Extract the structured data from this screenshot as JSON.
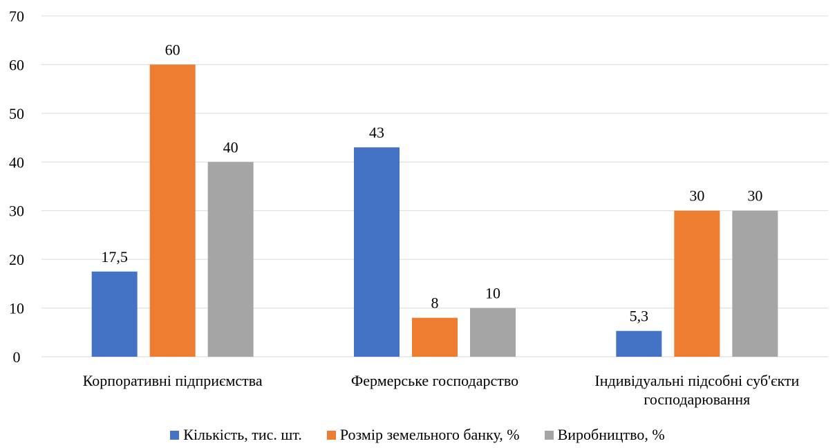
{
  "chart_data": {
    "type": "bar",
    "categories": [
      [
        "Корпоративні підприємства"
      ],
      [
        "Фермерське господарство"
      ],
      [
        "Індивідуальні підсобні суб'єкти",
        "господарювання"
      ]
    ],
    "series": [
      {
        "name": "Кількість, тис. шт.",
        "values": [
          17.5,
          43,
          5.3
        ],
        "labels": [
          "17,5",
          "43",
          "5,3"
        ],
        "color": "#4472C4"
      },
      {
        "name": "Розмір земельного банку, %",
        "values": [
          60,
          8,
          30
        ],
        "labels": [
          "60",
          "8",
          "30"
        ],
        "color": "#ED7D31"
      },
      {
        "name": "Виробництво, %",
        "values": [
          40,
          10,
          30
        ],
        "labels": [
          "40",
          "10",
          "30"
        ],
        "color": "#A5A5A5"
      }
    ],
    "yticks": [
      "0",
      "10",
      "20",
      "30",
      "40",
      "50",
      "60",
      "70"
    ],
    "ylim": [
      0,
      70
    ],
    "grid": true,
    "legend_position": "bottom"
  }
}
